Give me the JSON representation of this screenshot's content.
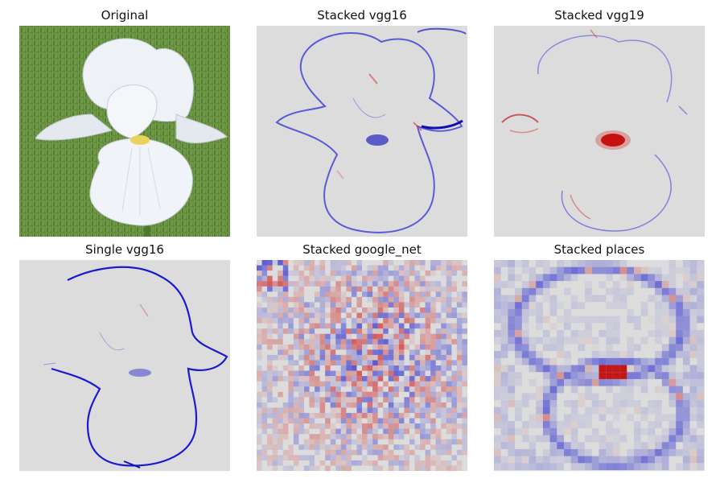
{
  "figure": {
    "panels": [
      {
        "title": "Original",
        "icon": "iris-flower-photo"
      },
      {
        "title": "Stacked vgg16",
        "icon": "saliency-map"
      },
      {
        "title": "Stacked vgg19",
        "icon": "saliency-map"
      },
      {
        "title": "Single vgg16",
        "icon": "saliency-map"
      },
      {
        "title": "Stacked google_net",
        "icon": "saliency-map"
      },
      {
        "title": "Stacked places",
        "icon": "saliency-map"
      }
    ],
    "colors": {
      "background_gray": "#dcdcdc",
      "negative_blue": "#1a1ad0",
      "positive_red": "#d01a1a",
      "grass_green": "#5f8a3a",
      "petal_white": "#eef2f6"
    }
  }
}
